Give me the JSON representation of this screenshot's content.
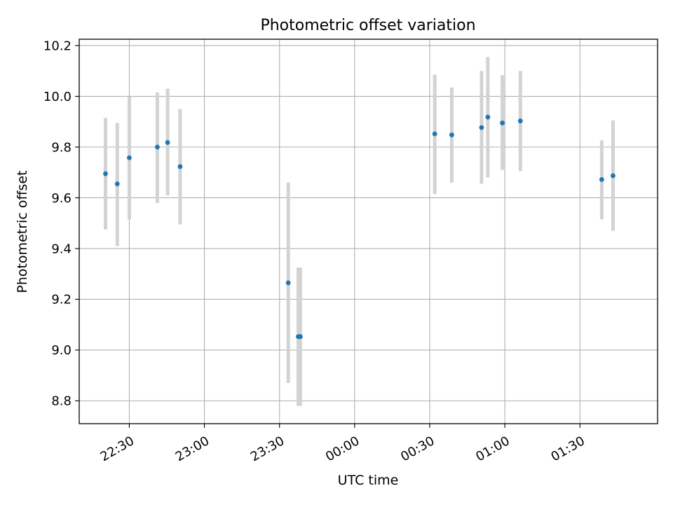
{
  "chart_data": {
    "type": "scatter",
    "title": "Photometric offset variation",
    "xlabel": "UTC time",
    "ylabel": "Photometric offset",
    "grid": true,
    "x_axis_type": "time",
    "xlim": [
      "22:10",
      "02:01"
    ],
    "ylim": [
      8.71,
      10.225
    ],
    "xticks": [
      "22:30",
      "23:00",
      "23:30",
      "00:00",
      "00:30",
      "01:00",
      "01:30"
    ],
    "yticks": [
      "8.8",
      "9.0",
      "9.2",
      "9.4",
      "9.6",
      "9.8",
      "10.0",
      "10.2"
    ],
    "series": [
      {
        "marker_color": "#1f77b4",
        "errorbar_color": "#d3d3d3",
        "points": [
          {
            "x": "22:20.5",
            "y": 9.695,
            "yerr": [
              9.475,
              9.915
            ]
          },
          {
            "x": "22:25.2",
            "y": 9.655,
            "yerr": [
              9.41,
              9.895
            ]
          },
          {
            "x": "22:30.0",
            "y": 9.758,
            "yerr": [
              9.515,
              9.998
            ]
          },
          {
            "x": "22:41.2",
            "y": 9.8,
            "yerr": [
              9.58,
              10.015
            ]
          },
          {
            "x": "22:45.3",
            "y": 9.818,
            "yerr": [
              9.61,
              10.03
            ]
          },
          {
            "x": "22:50.3",
            "y": 9.723,
            "yerr": [
              9.495,
              9.95
            ]
          },
          {
            "x": "23:33.5",
            "y": 9.265,
            "yerr": [
              8.87,
              9.66
            ]
          },
          {
            "x": "23:37.5",
            "y": 9.053,
            "yerr": [
              8.78,
              9.325
            ]
          },
          {
            "x": "23:38.3",
            "y": 9.053,
            "yerr": [
              8.78,
              9.325
            ]
          },
          {
            "x": "00:32.0",
            "y": 9.852,
            "yerr": [
              9.615,
              10.085
            ]
          },
          {
            "x": "00:38.8",
            "y": 9.848,
            "yerr": [
              9.66,
              10.035
            ]
          },
          {
            "x": "00:50.7",
            "y": 9.877,
            "yerr": [
              9.655,
              10.1
            ]
          },
          {
            "x": "00:53.2",
            "y": 9.918,
            "yerr": [
              9.68,
              10.155
            ]
          },
          {
            "x": "00:59.0",
            "y": 9.895,
            "yerr": [
              9.71,
              10.083
            ]
          },
          {
            "x": "01:06.2",
            "y": 9.903,
            "yerr": [
              9.705,
              10.1
            ]
          },
          {
            "x": "01:38.7",
            "y": 9.672,
            "yerr": [
              9.515,
              9.827
            ]
          },
          {
            "x": "01:43.2",
            "y": 9.687,
            "yerr": [
              9.47,
              9.905
            ]
          }
        ]
      }
    ]
  }
}
